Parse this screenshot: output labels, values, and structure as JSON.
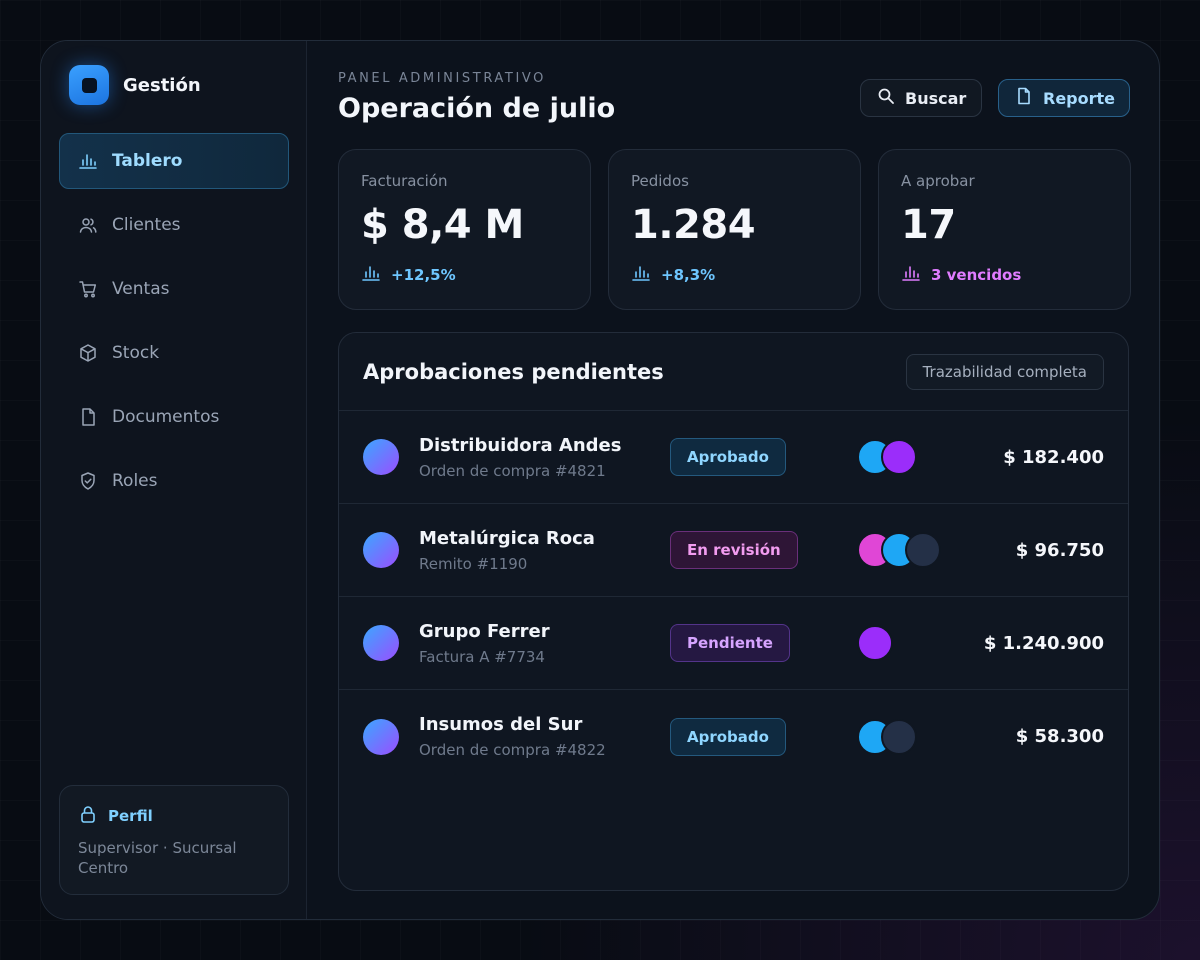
{
  "brand": {
    "name": "Gestión"
  },
  "sidebar": {
    "items": [
      {
        "label": "Tablero",
        "icon": "bar-chart-icon",
        "active": true
      },
      {
        "label": "Clientes",
        "icon": "users-icon",
        "active": false
      },
      {
        "label": "Ventas",
        "icon": "cart-icon",
        "active": false
      },
      {
        "label": "Stock",
        "icon": "box-icon",
        "active": false
      },
      {
        "label": "Documentos",
        "icon": "document-icon",
        "active": false
      },
      {
        "label": "Roles",
        "icon": "shield-icon",
        "active": false
      }
    ],
    "profile": {
      "title": "Perfil",
      "subtitle": "Supervisor · Sucursal Centro",
      "icon": "lock-icon"
    }
  },
  "header": {
    "eyebrow": "PANEL ADMINISTRATIVO",
    "title": "Operación de julio",
    "search_label": "Buscar",
    "report_label": "Reporte"
  },
  "kpis": [
    {
      "label": "Facturación",
      "value": "$ 8,4 M",
      "delta": "+12,5%",
      "tone": "blue"
    },
    {
      "label": "Pedidos",
      "value": "1.284",
      "delta": "+8,3%",
      "tone": "blue"
    },
    {
      "label": "A aprobar",
      "value": "17",
      "delta": "3 vencidos",
      "tone": "pink"
    }
  ],
  "approvals": {
    "title": "Aprobaciones pendientes",
    "chip": "Trazabilidad completa",
    "rows": [
      {
        "name": "Distribuidora Andes",
        "doc": "Orden de compra #4821",
        "status": "Aprobado",
        "amount": "$ 182.400"
      },
      {
        "name": "Metalúrgica Roca",
        "doc": "Remito #1190",
        "status": "En revisión",
        "amount": "$ 96.750"
      },
      {
        "name": "Grupo Ferrer",
        "doc": "Factura A #7734",
        "status": "Pendiente",
        "amount": "$ 1.240.900"
      },
      {
        "name": "Insumos del Sur",
        "doc": "Orden de compra #4822",
        "status": "Aprobado",
        "amount": "$ 58.300"
      }
    ]
  },
  "colors": {
    "accent": "#3aa0ff",
    "approved": "#8fd6ff",
    "review": "#f29cf0",
    "pending": "#d6a4ff"
  }
}
